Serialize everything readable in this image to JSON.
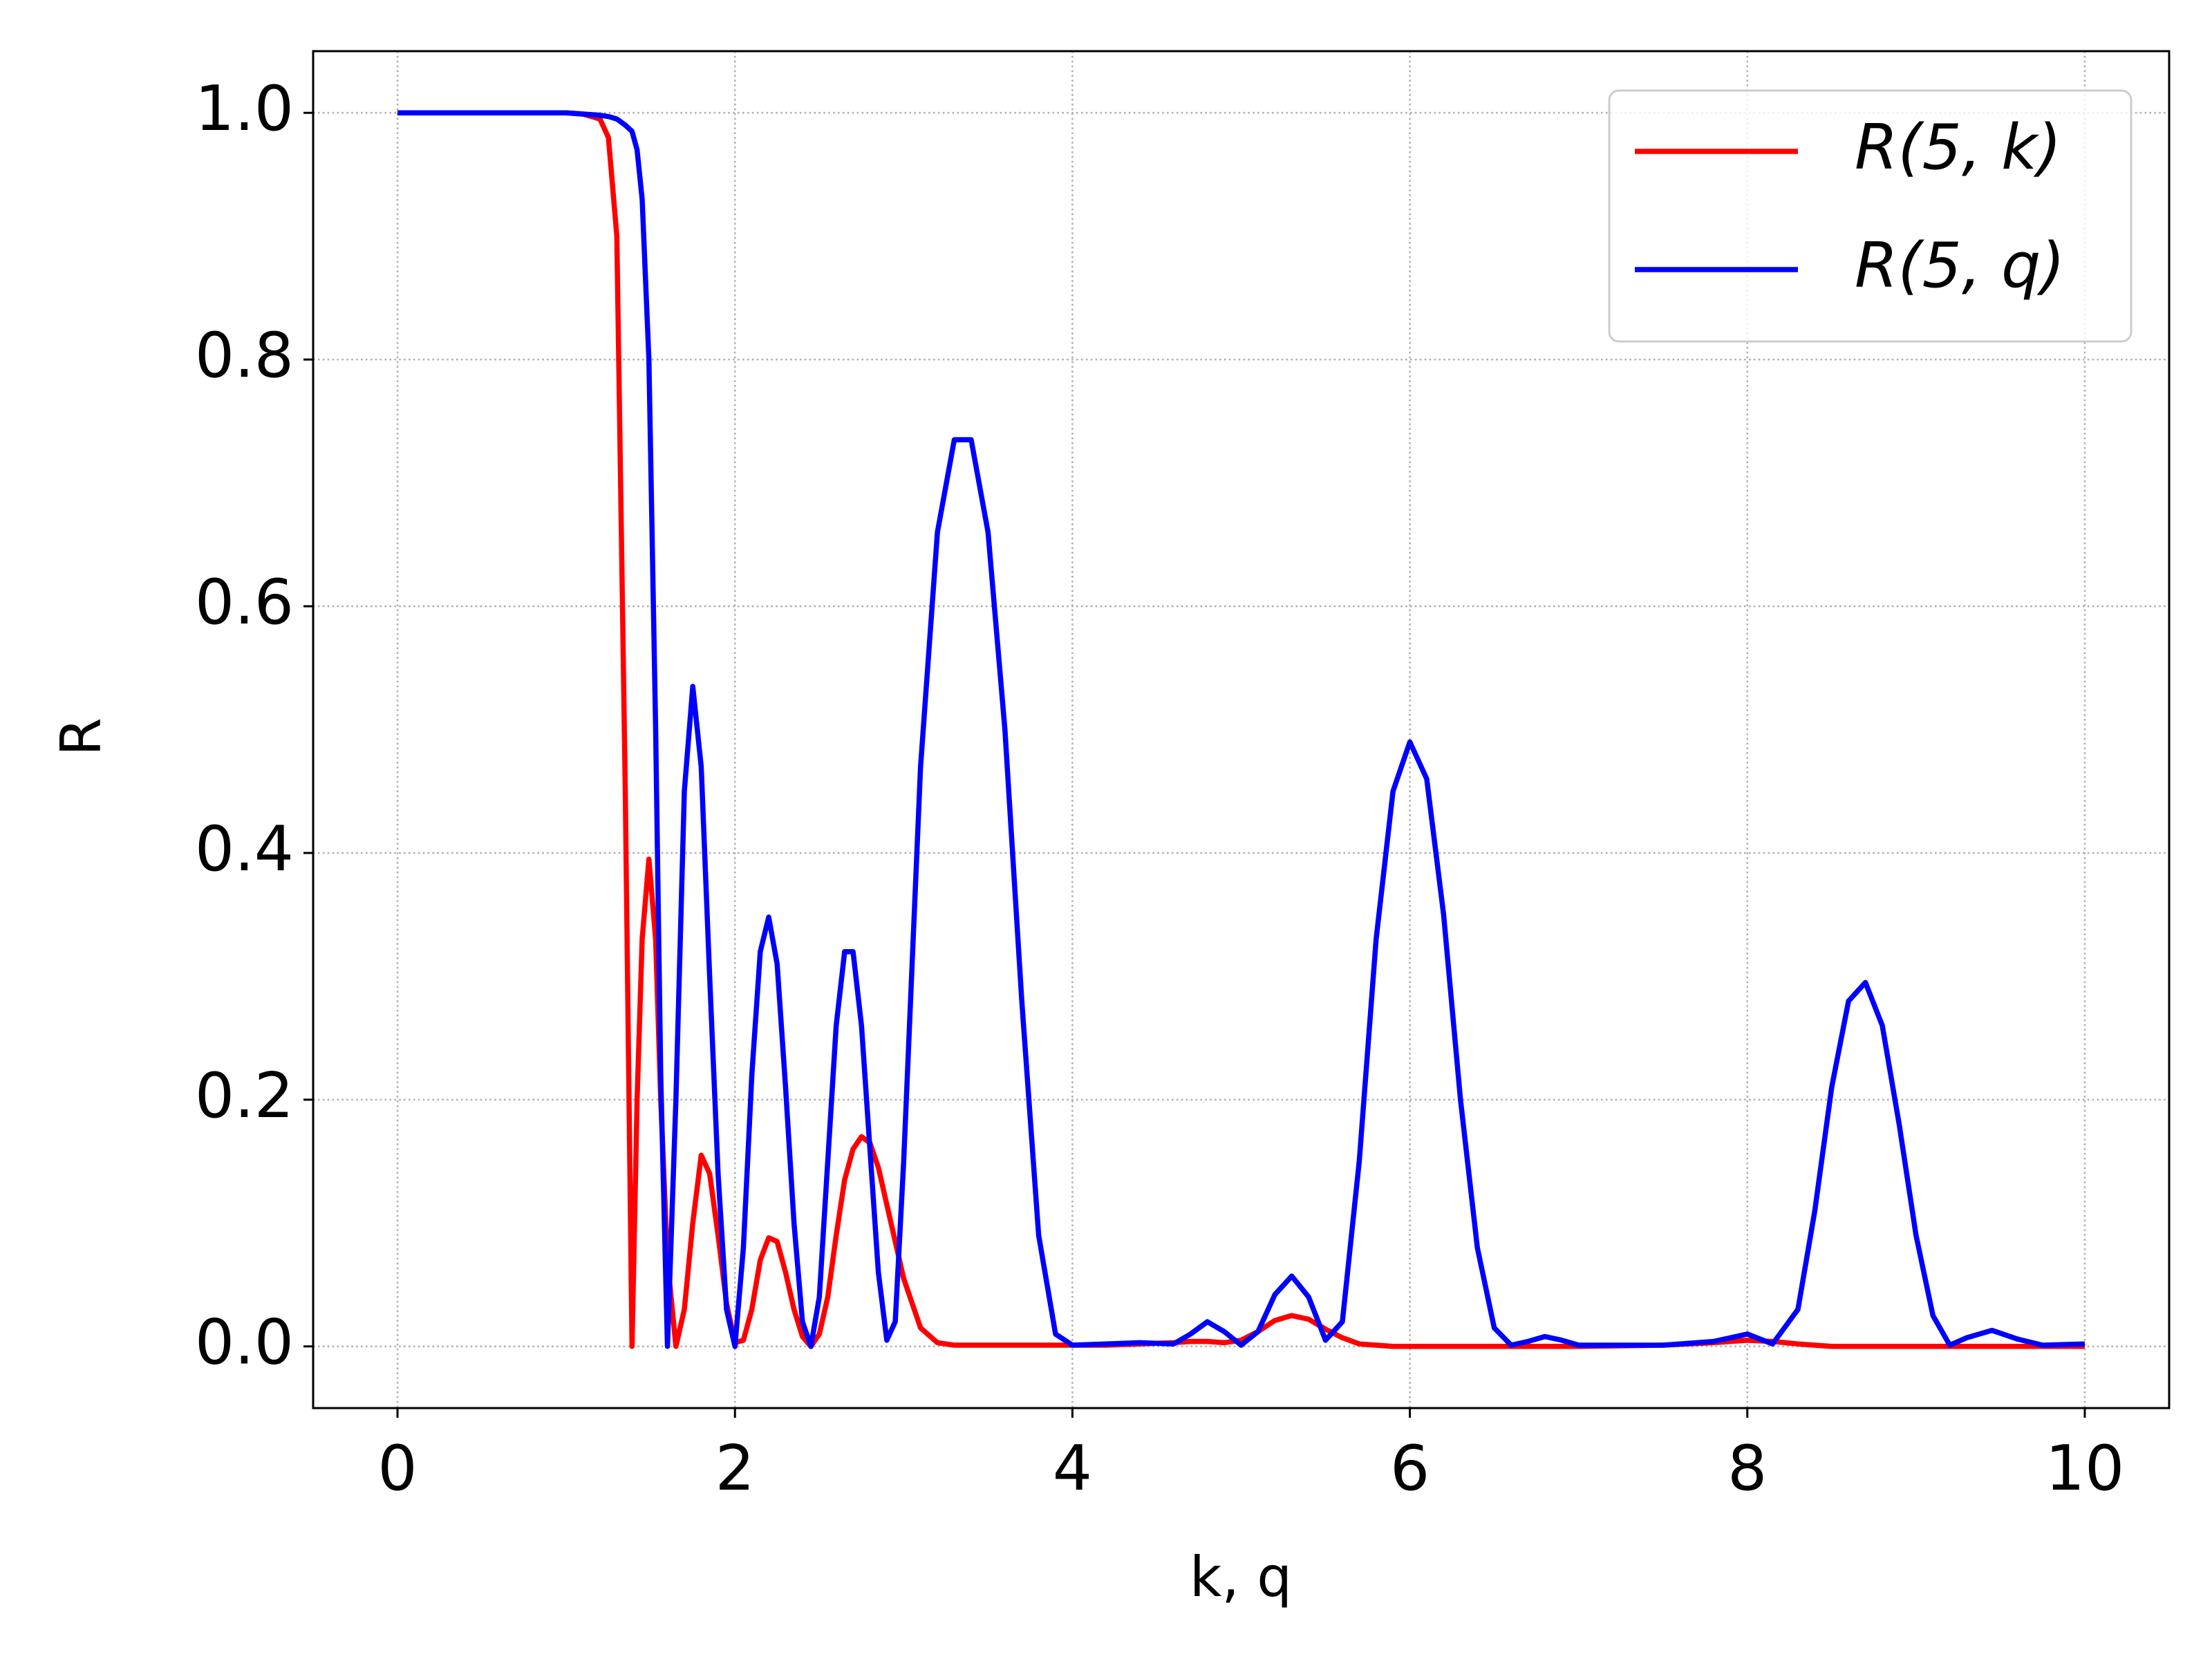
{
  "chart_data": {
    "type": "line",
    "x_label": "k,  q",
    "y_label": "R",
    "x": [
      0,
      0.5,
      1.0,
      1.1,
      1.2,
      1.25,
      1.3,
      1.35,
      1.39,
      1.42,
      1.45,
      1.49,
      1.53,
      1.56,
      1.6,
      1.65,
      1.7,
      1.75,
      1.8,
      1.85,
      1.9,
      1.95,
      2.0,
      2.05,
      2.1,
      2.15,
      2.2,
      2.25,
      2.3,
      2.35,
      2.4,
      2.45,
      2.5,
      2.55,
      2.6,
      2.65,
      2.7,
      2.75,
      2.8,
      2.85,
      2.9,
      2.95,
      3.0,
      3.1,
      3.2,
      3.3,
      3.4,
      3.5,
      3.6,
      3.7,
      3.8,
      3.9,
      4.0,
      4.2,
      4.4,
      4.6,
      4.7,
      4.8,
      4.9,
      5.0,
      5.1,
      5.2,
      5.3,
      5.4,
      5.5,
      5.6,
      5.7,
      5.8,
      5.9,
      6.0,
      6.1,
      6.2,
      6.3,
      6.4,
      6.5,
      6.6,
      6.7,
      6.8,
      6.9,
      7.0,
      7.5,
      7.8,
      8.0,
      8.15,
      8.3,
      8.4,
      8.5,
      8.6,
      8.7,
      8.8,
      8.9,
      9.0,
      9.1,
      9.2,
      9.3,
      9.45,
      9.6,
      9.75,
      10.0
    ],
    "series": [
      {
        "name": "R(5, k)",
        "color": "#ff0000",
        "values": [
          1,
          1,
          1,
          0.999,
          0.995,
          0.98,
          0.9,
          0.45,
          0,
          0.2,
          0.33,
          0.395,
          0.33,
          0.2,
          0.07,
          0,
          0.03,
          0.1,
          0.155,
          0.14,
          0.09,
          0.035,
          0.003,
          0.005,
          0.03,
          0.07,
          0.088,
          0.085,
          0.06,
          0.03,
          0.008,
          0,
          0.01,
          0.04,
          0.09,
          0.135,
          0.16,
          0.17,
          0.165,
          0.145,
          0.115,
          0.085,
          0.055,
          0.015,
          0.003,
          0.001,
          0.001,
          0.001,
          0.001,
          0.001,
          0.001,
          0.001,
          0.001,
          0.001,
          0.002,
          0.003,
          0.004,
          0.004,
          0.003,
          0.005,
          0.012,
          0.021,
          0.025,
          0.022,
          0.014,
          0.007,
          0.002,
          0.001,
          0,
          0,
          0,
          0,
          0,
          0,
          0,
          0,
          0,
          0,
          0,
          0,
          0.001,
          0.003,
          0.005,
          0.004,
          0.002,
          0.001,
          0,
          0,
          0,
          0,
          0,
          0,
          0,
          0,
          0,
          0,
          0,
          0,
          0
        ]
      },
      {
        "name": "R(5, q)",
        "color": "#0000ff",
        "values": [
          1,
          1,
          1,
          0.999,
          0.998,
          0.997,
          0.995,
          0.99,
          0.985,
          0.97,
          0.93,
          0.8,
          0.5,
          0.22,
          0,
          0.2,
          0.45,
          0.535,
          0.47,
          0.3,
          0.14,
          0.03,
          0,
          0.08,
          0.22,
          0.32,
          0.348,
          0.31,
          0.21,
          0.1,
          0.02,
          0,
          0.04,
          0.15,
          0.26,
          0.32,
          0.32,
          0.26,
          0.16,
          0.06,
          0.005,
          0.02,
          0.15,
          0.47,
          0.66,
          0.735,
          0.735,
          0.66,
          0.5,
          0.28,
          0.09,
          0.01,
          0.001,
          0.002,
          0.003,
          0.002,
          0.01,
          0.02,
          0.012,
          0.001,
          0.012,
          0.042,
          0.057,
          0.04,
          0.005,
          0.02,
          0.15,
          0.33,
          0.45,
          0.49,
          0.46,
          0.35,
          0.2,
          0.08,
          0.015,
          0.001,
          0.004,
          0.008,
          0.005,
          0.001,
          0.001,
          0.004,
          0.01,
          0.002,
          0.03,
          0.11,
          0.21,
          0.28,
          0.295,
          0.26,
          0.18,
          0.09,
          0.025,
          0.001,
          0.007,
          0.013,
          0.006,
          0.001,
          0.002
        ]
      }
    ],
    "xlim": [
      -0.5,
      10.5
    ],
    "ylim": [
      -0.05,
      1.05
    ],
    "xticks": [
      0,
      2,
      4,
      6,
      8,
      10
    ],
    "yticks": [
      {
        "value": 0,
        "label": "0.0"
      },
      0.2,
      0.4,
      0.6,
      0.8,
      {
        "value": 1,
        "label": "1.0"
      }
    ],
    "grid": true,
    "legend": "upper right"
  }
}
